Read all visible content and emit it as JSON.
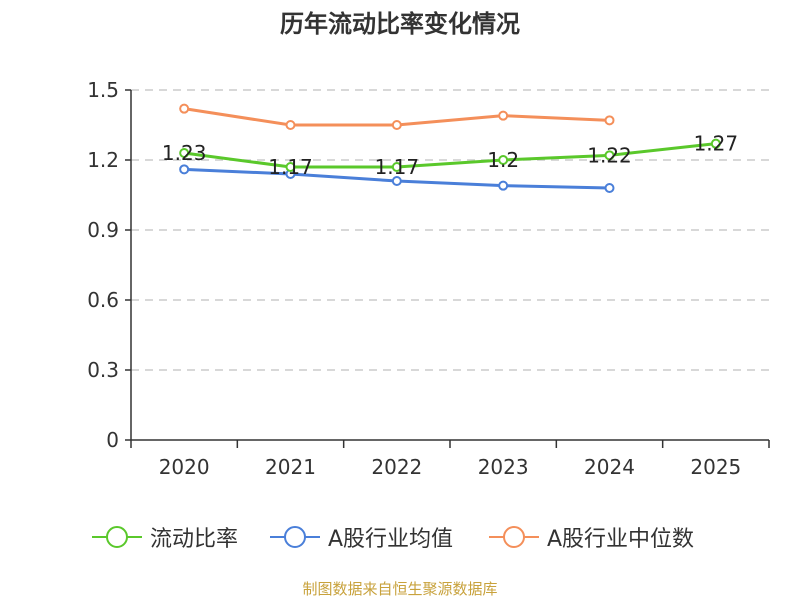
{
  "chart_data": {
    "type": "line",
    "title": "历年流动比率变化情况",
    "categories": [
      "2020",
      "2021",
      "2022",
      "2023",
      "2024",
      "2025"
    ],
    "yticks": [
      "0",
      "0.3",
      "0.6",
      "0.9",
      "1.2",
      "1.5"
    ],
    "ylim": [
      0,
      1.5
    ],
    "grid": true,
    "legend_position": "bottom",
    "series": [
      {
        "name": "流动比率",
        "color": "#5ac82b",
        "values": [
          1.23,
          1.17,
          1.17,
          1.2,
          1.22,
          1.27
        ],
        "labels": [
          "1.23",
          "1.17",
          "1.17",
          "1.2",
          "1.22",
          "1.27"
        ]
      },
      {
        "name": "A股行业均值",
        "color": "#4a7fd9",
        "values": [
          1.16,
          1.14,
          1.11,
          1.09,
          1.08,
          null
        ]
      },
      {
        "name": "A股行业中位数",
        "color": "#f48f5a",
        "values": [
          1.42,
          1.35,
          1.35,
          1.39,
          1.37,
          null
        ]
      }
    ]
  },
  "source": "制图数据来自恒生聚源数据库"
}
